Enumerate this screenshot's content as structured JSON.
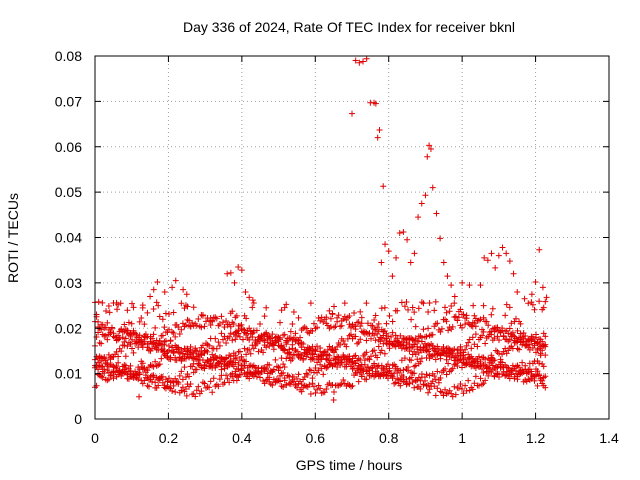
{
  "chart_data": {
    "type": "scatter",
    "title": "Day 336 of 2024, Rate Of TEC Index for receiver bknl",
    "xlabel": "GPS time / hours",
    "ylabel": "ROTI / TECUs",
    "xlim": [
      0,
      1.4
    ],
    "ylim": [
      0,
      0.08
    ],
    "xticks": [
      0,
      0.2,
      0.4,
      0.6,
      0.8,
      1,
      1.2,
      1.4
    ],
    "yticks": [
      0,
      0.01,
      0.02,
      0.03,
      0.04,
      0.05,
      0.06,
      0.07,
      0.08
    ],
    "xtick_labels": [
      "0",
      "0.2",
      "0.4",
      "0.6",
      "0.8",
      "1",
      "1.2",
      "1.4"
    ],
    "ytick_labels": [
      "0",
      "0.01",
      "0.02",
      "0.03",
      "0.04",
      "0.05",
      "0.06",
      "0.07",
      "0.08"
    ],
    "grid": true,
    "marker": "plus",
    "color": "#e00000",
    "x_step": 0.0042,
    "x_end": 1.23,
    "band_centers": [
      0.0085,
      0.0105,
      0.0125,
      0.0145,
      0.0165,
      0.0195,
      0.023
    ],
    "band_spread": 0.003,
    "outliers": [
      [
        0.0,
        0.0257
      ],
      [
        0.01,
        0.0258
      ],
      [
        0.02,
        0.0256
      ],
      [
        0.03,
        0.0238
      ],
      [
        0.04,
        0.0235
      ],
      [
        0.06,
        0.0242
      ],
      [
        0.07,
        0.0255
      ],
      [
        0.1,
        0.021
      ],
      [
        0.13,
        0.0245
      ],
      [
        0.15,
        0.027
      ],
      [
        0.16,
        0.0285
      ],
      [
        0.17,
        0.0302
      ],
      [
        0.19,
        0.028
      ],
      [
        0.21,
        0.029
      ],
      [
        0.22,
        0.0305
      ],
      [
        0.24,
        0.0285
      ],
      [
        0.25,
        0.0275
      ],
      [
        0.36,
        0.032
      ],
      [
        0.37,
        0.0322
      ],
      [
        0.38,
        0.03
      ],
      [
        0.39,
        0.0335
      ],
      [
        0.4,
        0.0328
      ],
      [
        0.41,
        0.028
      ],
      [
        0.42,
        0.0268
      ],
      [
        0.43,
        0.0262
      ],
      [
        0.7,
        0.0673
      ],
      [
        0.71,
        0.079
      ],
      [
        0.72,
        0.0785
      ],
      [
        0.73,
        0.0788
      ],
      [
        0.74,
        0.0794
      ],
      [
        0.75,
        0.0697
      ],
      [
        0.76,
        0.0697
      ],
      [
        0.765,
        0.0695
      ],
      [
        0.77,
        0.062
      ],
      [
        0.775,
        0.0637
      ],
      [
        0.78,
        0.0345
      ],
      [
        0.785,
        0.0513
      ],
      [
        0.79,
        0.0385
      ],
      [
        0.8,
        0.037
      ],
      [
        0.81,
        0.0315
      ],
      [
        0.82,
        0.0355
      ],
      [
        0.83,
        0.041
      ],
      [
        0.84,
        0.0412
      ],
      [
        0.85,
        0.0395
      ],
      [
        0.86,
        0.0345
      ],
      [
        0.87,
        0.0365
      ],
      [
        0.88,
        0.0445
      ],
      [
        0.89,
        0.0475
      ],
      [
        0.9,
        0.0493
      ],
      [
        0.905,
        0.0578
      ],
      [
        0.91,
        0.0603
      ],
      [
        0.915,
        0.0595
      ],
      [
        0.92,
        0.051
      ],
      [
        0.93,
        0.0453
      ],
      [
        0.94,
        0.0398
      ],
      [
        0.95,
        0.0345
      ],
      [
        0.96,
        0.0315
      ],
      [
        0.97,
        0.0295
      ],
      [
        0.98,
        0.027
      ],
      [
        1.0,
        0.03
      ],
      [
        1.02,
        0.0295
      ],
      [
        1.03,
        0.025
      ],
      [
        1.05,
        0.0295
      ],
      [
        1.06,
        0.0355
      ],
      [
        1.07,
        0.035
      ],
      [
        1.08,
        0.0365
      ],
      [
        1.09,
        0.0333
      ],
      [
        1.1,
        0.036
      ],
      [
        1.11,
        0.0378
      ],
      [
        1.12,
        0.0365
      ],
      [
        1.13,
        0.0348
      ],
      [
        1.14,
        0.032
      ],
      [
        1.15,
        0.028
      ],
      [
        1.17,
        0.0265
      ],
      [
        1.18,
        0.0255
      ],
      [
        1.19,
        0.0275
      ],
      [
        1.2,
        0.0302
      ],
      [
        1.21,
        0.0373
      ],
      [
        1.22,
        0.029
      ],
      [
        1.23,
        0.0268
      ],
      [
        0.65,
        0.0042
      ],
      [
        0.25,
        0.0051
      ],
      [
        0.12,
        0.0049
      ]
    ]
  }
}
